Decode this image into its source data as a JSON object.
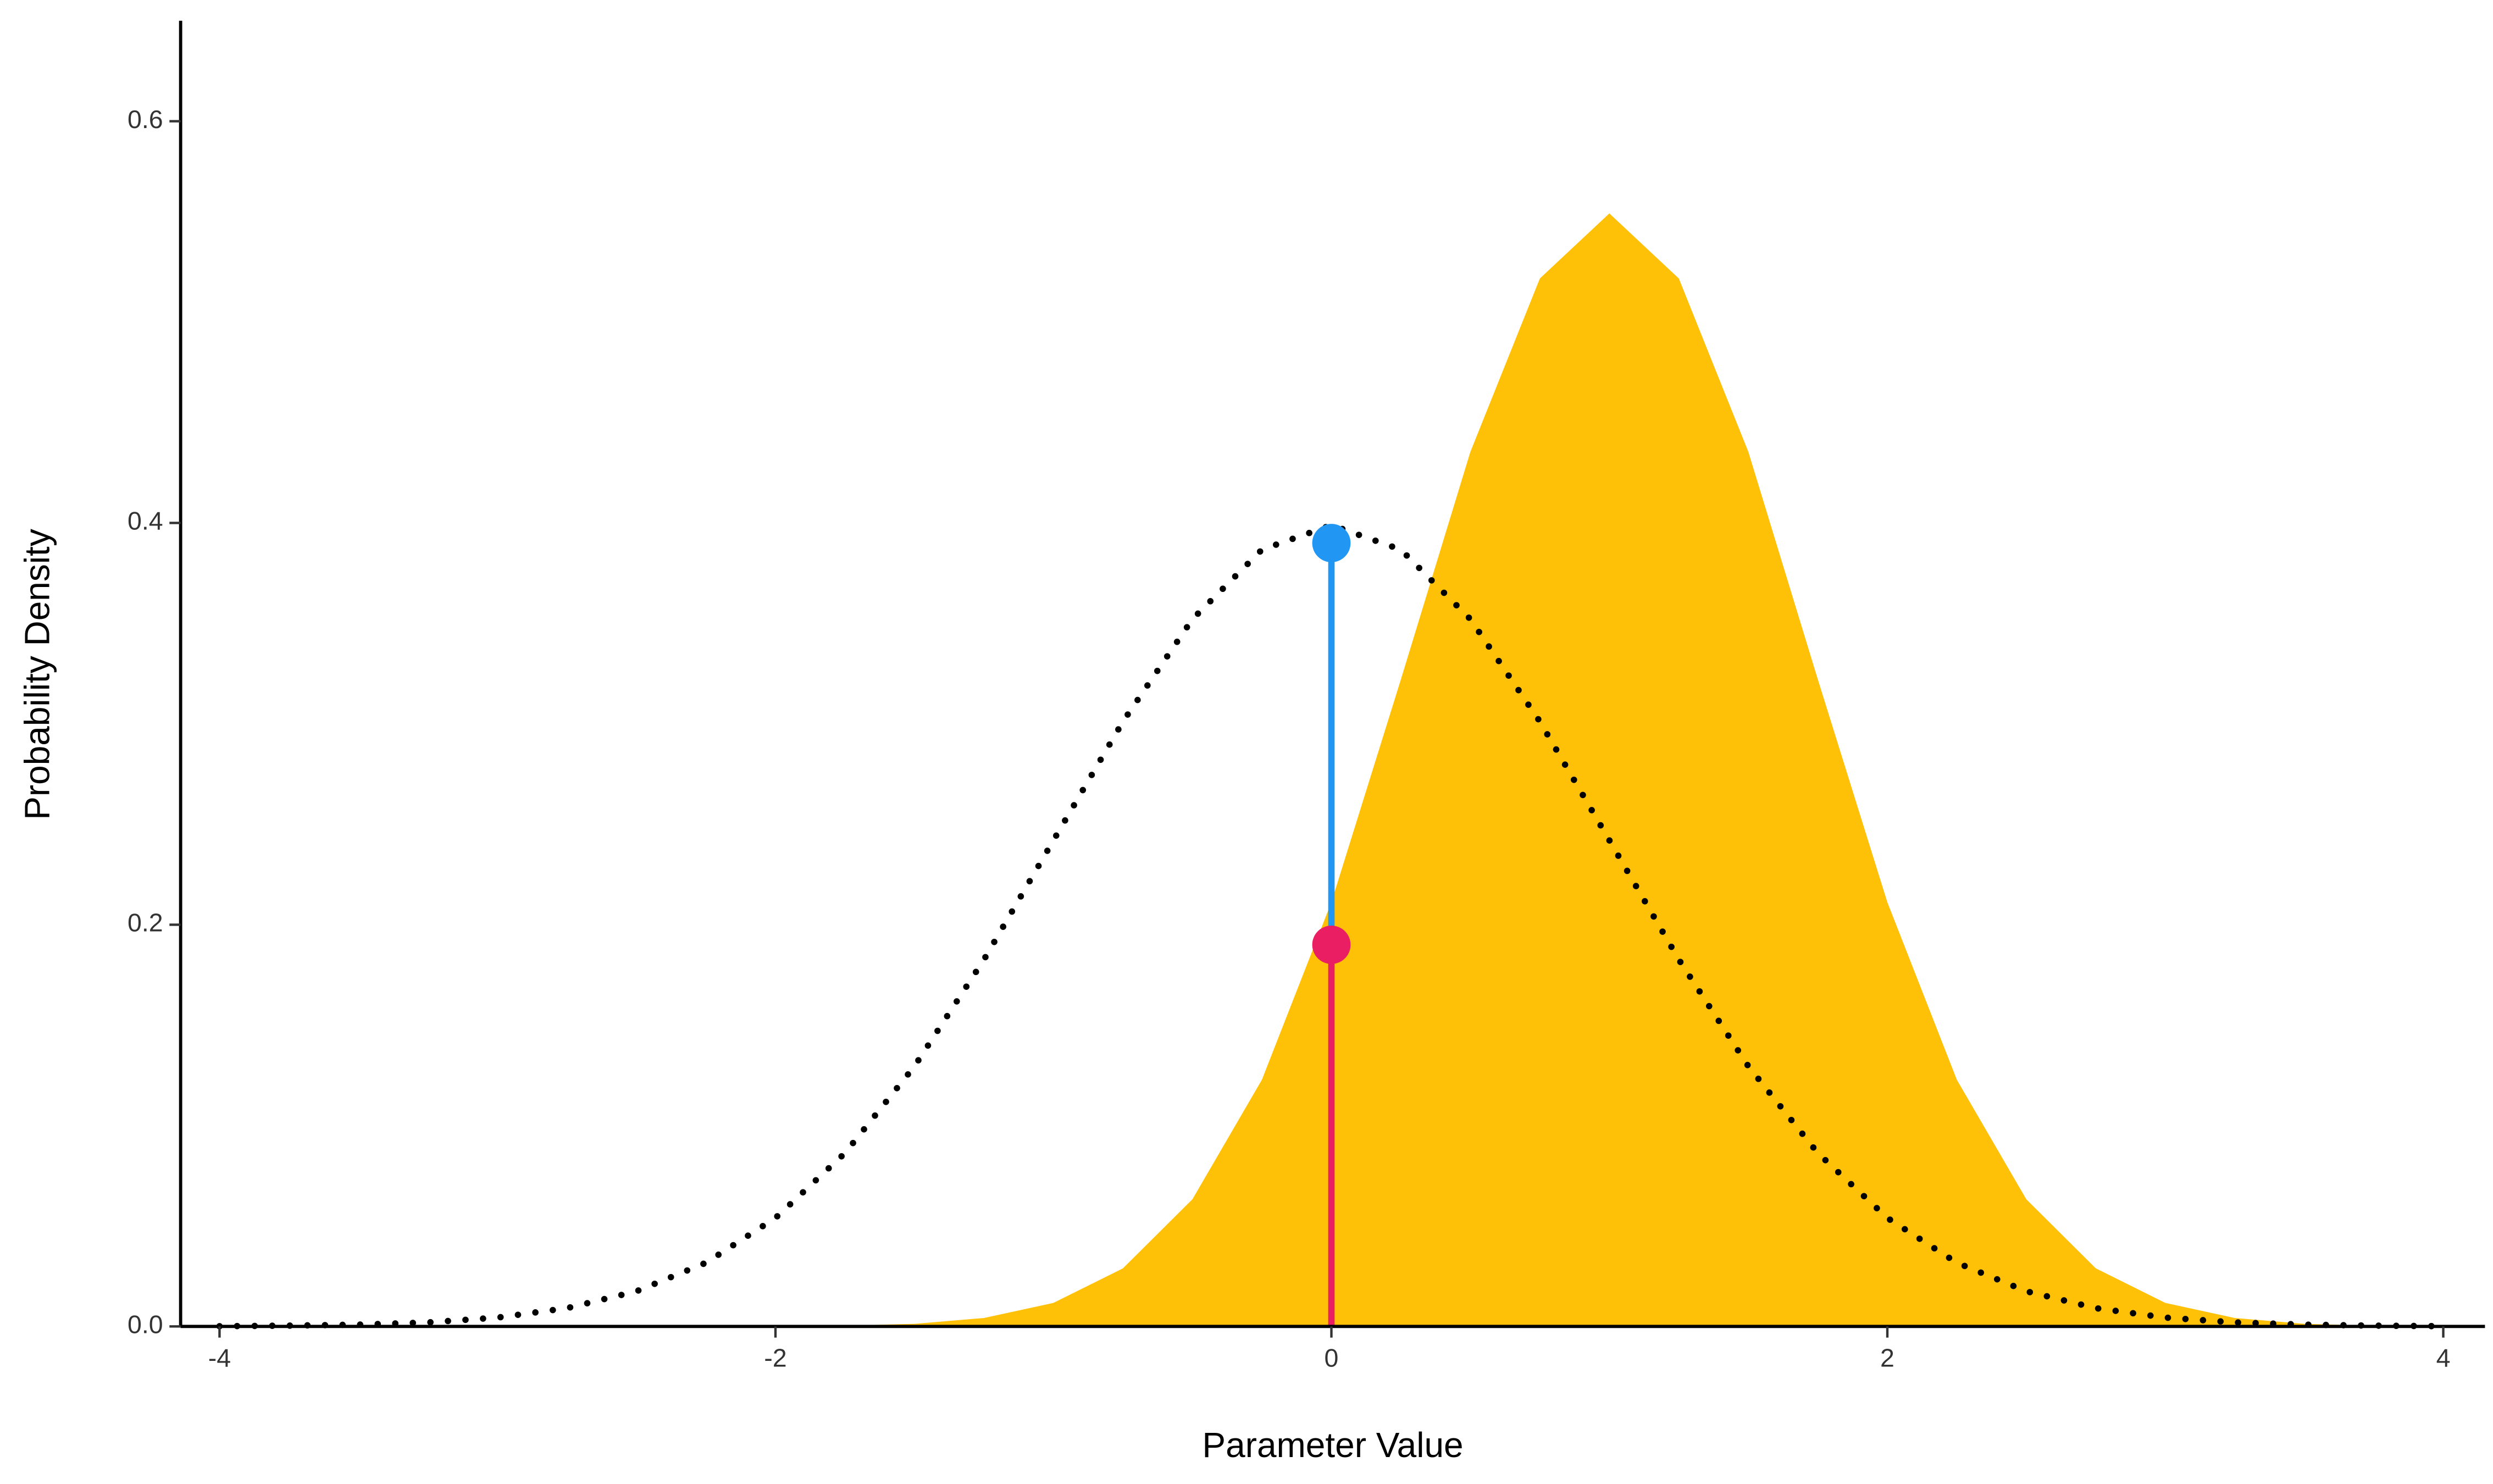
{
  "chart_data": {
    "type": "density",
    "xlabel": "Parameter Value",
    "ylabel": "Probability Density",
    "x": [
      -4,
      -3.75,
      -3.5,
      -3.25,
      -3,
      -2.75,
      -2.5,
      -2.25,
      -2,
      -1.75,
      -1.5,
      -1.25,
      -1,
      -0.75,
      -0.5,
      -0.25,
      0,
      0.25,
      0.5,
      0.75,
      1,
      1.25,
      1.5,
      1.75,
      2,
      2.25,
      2.5,
      2.75,
      3,
      3.25,
      3.5,
      3.75,
      4
    ],
    "series": [
      {
        "color": "#ffc107",
        "style": "area",
        "values": [
          0,
          0,
          0,
          0,
          0,
          0,
          0,
          0,
          0.0001,
          0.0004,
          0.0013,
          0.0042,
          0.0117,
          0.0289,
          0.0633,
          0.1228,
          0.2112,
          0.3221,
          0.4354,
          0.5217,
          0.5541,
          0.5217,
          0.4354,
          0.3221,
          0.2112,
          0.1228,
          0.0633,
          0.0289,
          0.0117,
          0.0042,
          0.0013,
          0.0004,
          0.0001
        ]
      },
      {
        "color": "#000000",
        "style": "dotted",
        "values": [
          0.0001,
          0.0004,
          0.0009,
          0.002,
          0.0044,
          0.0091,
          0.0175,
          0.0317,
          0.054,
          0.0863,
          0.1295,
          0.1826,
          0.242,
          0.3011,
          0.3521,
          0.3867,
          0.3989,
          0.3867,
          0.3521,
          0.3011,
          0.242,
          0.1826,
          0.1295,
          0.0863,
          0.054,
          0.0317,
          0.0175,
          0.0091,
          0.0044,
          0.002,
          0.0009,
          0.0004,
          0.0001
        ]
      }
    ],
    "points": [
      {
        "x": 0,
        "y": 0.19,
        "color": "#e91e63"
      },
      {
        "x": 0,
        "y": 0.39,
        "color": "#2196f3"
      }
    ],
    "xlim": [
      -4.14,
      4.15
    ],
    "xticks": [
      -4,
      -2,
      0,
      2,
      4
    ],
    "ylim": [
      0,
      0.65
    ],
    "yticks": [
      {
        "value": 0,
        "label": "0.0"
      },
      {
        "value": 0.2,
        "label": "0.2"
      },
      {
        "value": 0.4,
        "label": "0.4"
      },
      {
        "value": 0.6,
        "label": "0.6"
      }
    ]
  }
}
